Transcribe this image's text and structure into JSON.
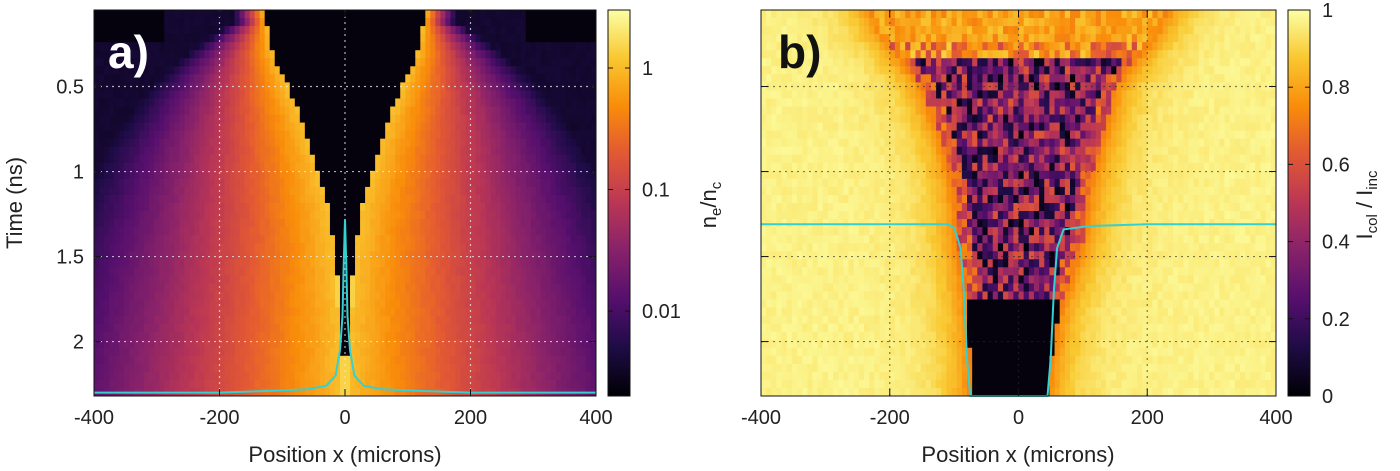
{
  "chart_data": [
    {
      "type": "heatmap",
      "panel_label": "a)",
      "xlabel": "Position x (microns)",
      "ylabel": "Time (ns)",
      "xlim": [
        -400,
        400
      ],
      "ylim": [
        2.32,
        0.05
      ],
      "x_ticks": [
        -400,
        -200,
        0,
        200,
        400
      ],
      "x_tick_labels": [
        "-400",
        "-200",
        "0",
        "200",
        "400"
      ],
      "y_ticks": [
        0.5,
        1,
        1.5,
        2
      ],
      "y_tick_labels": [
        "0.5",
        "1",
        "1.5",
        "2"
      ],
      "grid": true,
      "colormap": "inferno",
      "colorbar": {
        "scale": "log",
        "range": [
          0.002,
          3
        ],
        "ticks": [
          0.01,
          0.1,
          1
        ],
        "tick_labels": [
          "0.01",
          "0.1",
          "1"
        ],
        "label_main": "n",
        "label_sub1": "e",
        "label_sep": "/n",
        "label_sub2": "c"
      },
      "overlay_line": {
        "color": "#35d0d0",
        "x": [
          -400,
          -200,
          -120,
          -60,
          -30,
          -15,
          -8,
          -4,
          -2,
          0,
          2,
          4,
          8,
          15,
          30,
          60,
          120,
          200,
          400
        ],
        "y_time": [
          2.3,
          2.3,
          2.29,
          2.28,
          2.26,
          2.2,
          2.05,
          1.85,
          1.55,
          1.28,
          1.55,
          1.85,
          2.05,
          2.2,
          2.26,
          2.28,
          2.29,
          2.3,
          2.3
        ]
      },
      "critical_front": {
        "time": [
          0.05,
          0.3,
          0.6,
          0.9,
          1.1,
          1.3,
          1.6,
          1.9,
          2.2,
          2.32
        ],
        "half_width": [
          130,
          115,
          80,
          50,
          35,
          22,
          12,
          6,
          3,
          2
        ]
      }
    },
    {
      "type": "heatmap",
      "panel_label": "b)",
      "xlabel": "Position x (microns)",
      "ylabel": "",
      "xlim": [
        -400,
        400
      ],
      "ylim": [
        2.32,
        0.05
      ],
      "x_ticks": [
        -400,
        -200,
        0,
        200,
        400
      ],
      "x_tick_labels": [
        "-400",
        "-200",
        "0",
        "200",
        "400"
      ],
      "y_ticks": [
        0.5,
        1,
        1.5,
        2
      ],
      "y_tick_labels": [],
      "grid": true,
      "colormap": "inferno",
      "colorbar": {
        "scale": "linear",
        "range": [
          0,
          1
        ],
        "ticks": [
          0,
          0.2,
          0.4,
          0.6,
          0.8,
          1
        ],
        "tick_labels": [
          "0",
          "0.2",
          "0.4",
          "0.6",
          "0.8",
          "1"
        ],
        "label_main": "I",
        "label_sub1": "col",
        "label_sep": " / I",
        "label_sub2": "inc"
      },
      "overlay_line": {
        "color": "#35d0d0",
        "x": [
          -400,
          -200,
          -110,
          -100,
          -90,
          -85,
          -80,
          -75,
          45,
          50,
          55,
          60,
          70,
          110,
          200,
          400
        ],
        "y_time": [
          1.31,
          1.31,
          1.31,
          1.33,
          1.45,
          1.7,
          2.1,
          2.32,
          2.32,
          2.1,
          1.7,
          1.45,
          1.34,
          1.32,
          1.31,
          1.31
        ]
      },
      "dark_core": {
        "time": [
          0.05,
          0.2,
          0.5,
          0.8,
          1.1,
          1.4,
          1.8,
          2.1,
          2.32
        ],
        "left": [
          -230,
          -210,
          -150,
          -120,
          -100,
          -95,
          -80,
          -75,
          -75
        ],
        "right": [
          230,
          210,
          150,
          130,
          110,
          100,
          65,
          50,
          45
        ]
      }
    }
  ]
}
